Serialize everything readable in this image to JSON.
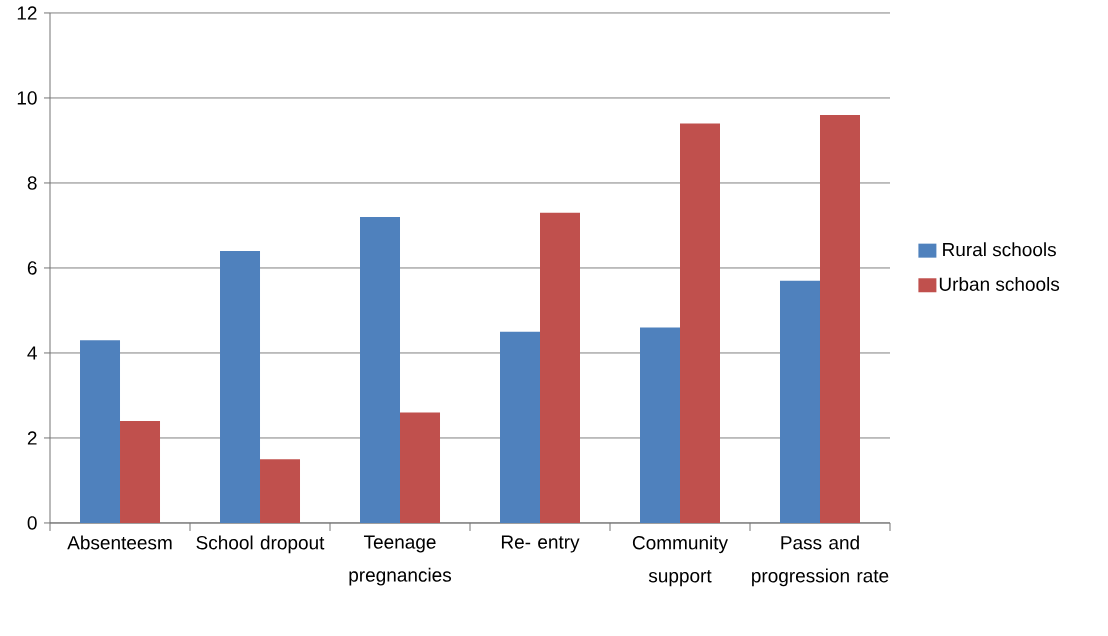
{
  "chart_data": {
    "type": "bar",
    "categories": [
      "Absenteesm",
      "School dropout",
      "Teenage pregnancies",
      "Re- entry",
      "Community support",
      "Pass and progression rate"
    ],
    "series": [
      {
        "name": "Rural schools",
        "color": "#4f81bd",
        "values": [
          4.3,
          6.4,
          7.2,
          4.5,
          4.6,
          5.7
        ]
      },
      {
        "name": "Urban schools",
        "color": "#c0504d",
        "values": [
          2.4,
          1.5,
          2.6,
          7.3,
          9.4,
          9.6
        ]
      }
    ],
    "ylim": [
      0,
      12
    ],
    "yticks": [
      0,
      2,
      4,
      6,
      8,
      10,
      12
    ],
    "grid": "y",
    "legend": "right"
  }
}
